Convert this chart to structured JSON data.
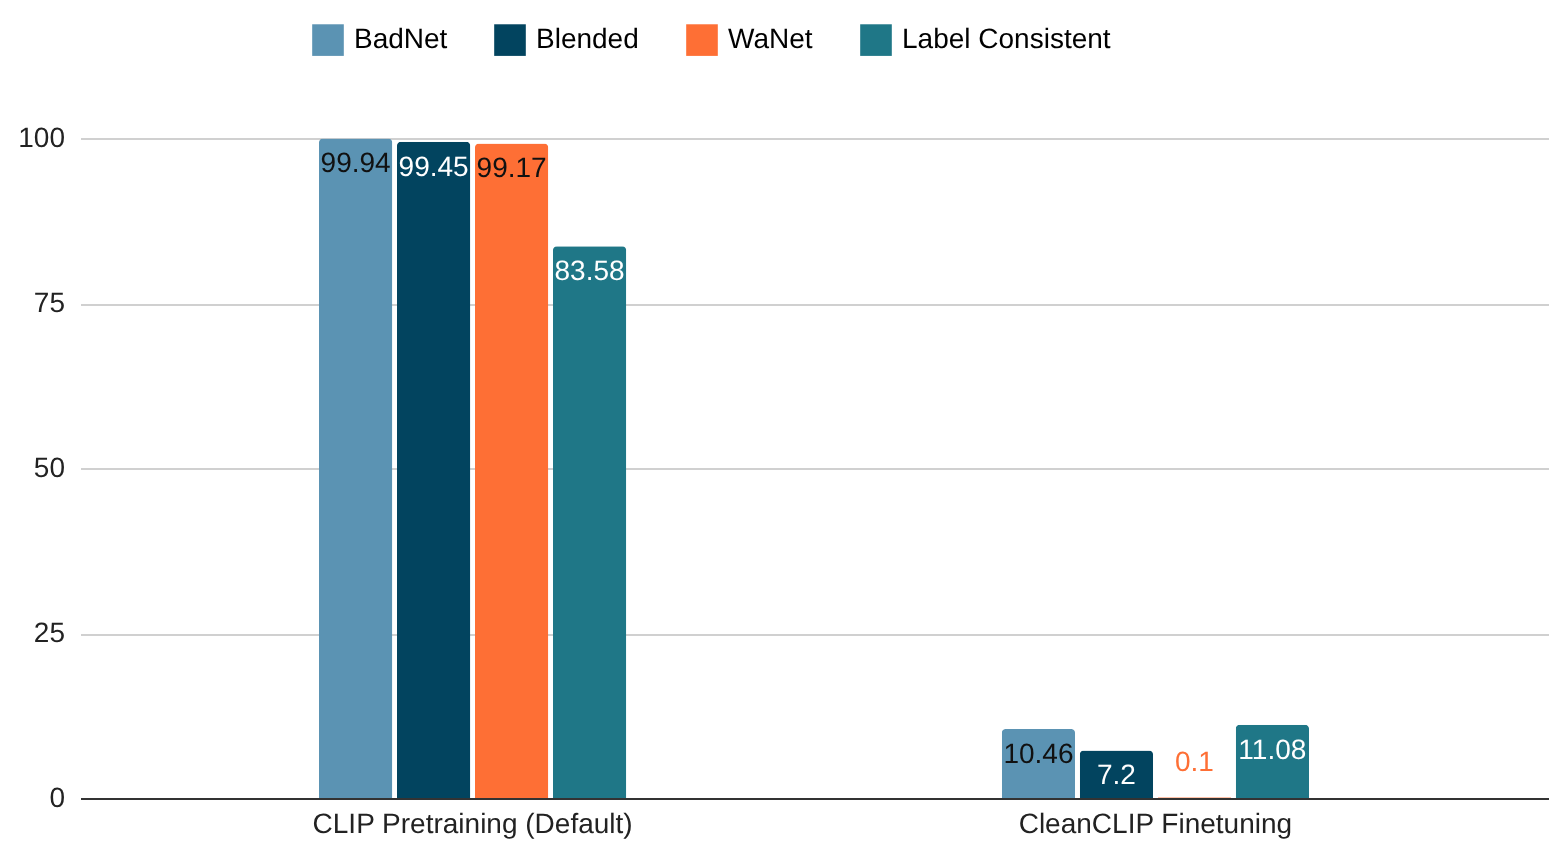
{
  "chart_data": {
    "type": "bar",
    "categories": [
      "CLIP Pretraining (Default)",
      "CleanCLIP Finetuning"
    ],
    "series": [
      {
        "name": "BadNet",
        "color": "#5b93b3",
        "values": [
          99.94,
          10.46
        ]
      },
      {
        "name": "Blended",
        "color": "#02445f",
        "values": [
          99.45,
          7.2
        ]
      },
      {
        "name": "WaNet",
        "color": "#fe6f35",
        "values": [
          99.17,
          0.1
        ]
      },
      {
        "name": "Label Consistent",
        "color": "#1f7787",
        "values": [
          83.58,
          11.08
        ]
      }
    ],
    "ylim": [
      0,
      100
    ],
    "yticks": [
      0,
      25,
      50,
      75,
      100
    ],
    "grid": "y",
    "legend": "top",
    "data_labels": true
  }
}
